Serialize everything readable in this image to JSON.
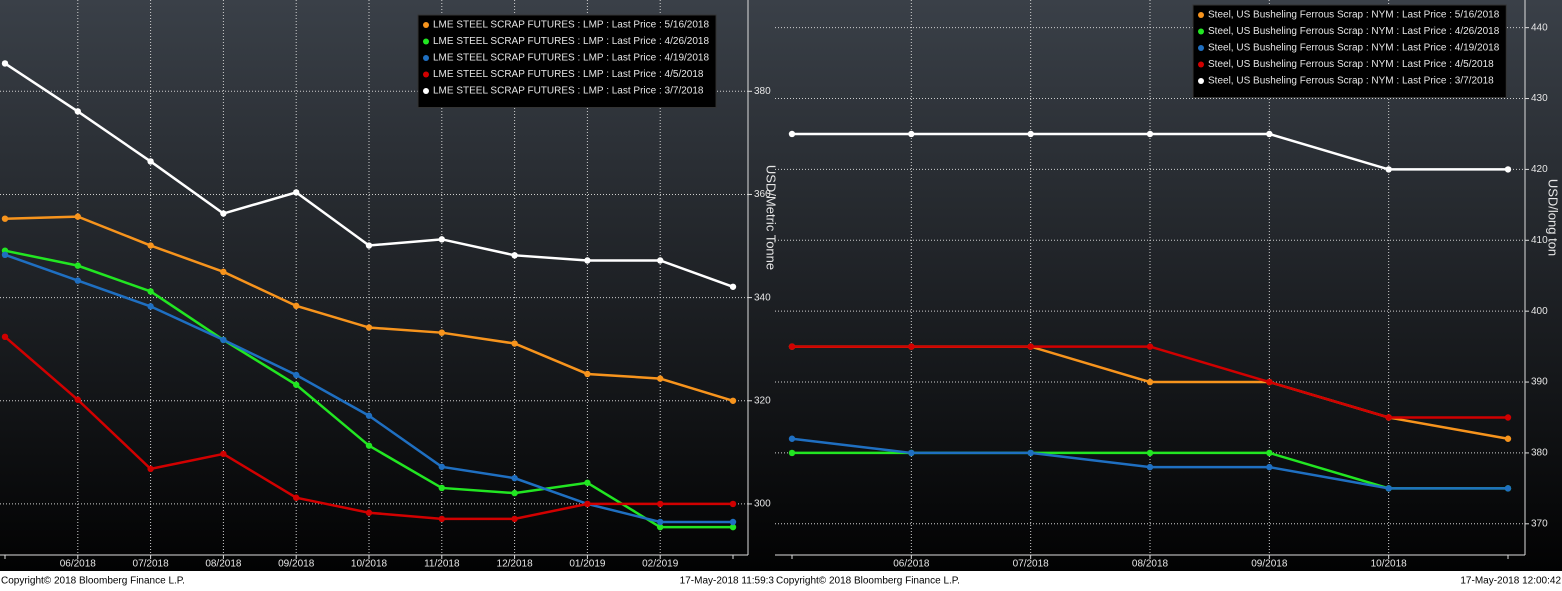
{
  "chart_data": [
    {
      "type": "line",
      "y_label": "USD/Metric Tonne",
      "categories": [
        null,
        "06/2018",
        "07/2018",
        "08/2018",
        "09/2018",
        "10/2018",
        "11/2018",
        "12/2018",
        "01/2019",
        "02/2019",
        null
      ],
      "series": [
        {
          "name": "LME STEEL SCRAP FUTURES : LMP : Last Price : 5/16/2018",
          "color": "#f7941d",
          "values": [
            355.3,
            355.7,
            350.1,
            345.0,
            338.4,
            334.2,
            333.2,
            331.1,
            325.2,
            324.3,
            320.0
          ]
        },
        {
          "name": "LME STEEL SCRAP FUTURES : LMP : Last Price : 4/26/2018",
          "color": "#22e622",
          "values": [
            349.1,
            346.2,
            341.2,
            331.8,
            323.1,
            311.3,
            303.1,
            302.1,
            304.1,
            295.5,
            295.5
          ]
        },
        {
          "name": "LME STEEL SCRAP FUTURES : LMP : Last Price : 4/19/2018",
          "color": "#1f6fc1",
          "values": [
            348.3,
            343.3,
            338.3,
            331.8,
            325.0,
            317.1,
            307.2,
            305.0,
            300.0,
            296.5,
            296.5
          ]
        },
        {
          "name": "LME STEEL SCRAP FUTURES : LMP : Last Price : 4/5/2018",
          "color": "#d10000",
          "values": [
            332.4,
            320.2,
            306.8,
            309.7,
            301.2,
            298.3,
            297.1,
            297.1,
            300.0,
            300.0,
            300.0
          ]
        },
        {
          "name": "LME STEEL SCRAP FUTURES : LMP : Last Price : 3/7/2018",
          "color": "#ffffff",
          "values": [
            385.4,
            376.1,
            366.4,
            356.3,
            360.4,
            350.1,
            351.3,
            348.2,
            347.2,
            347.2,
            342.1
          ]
        }
      ],
      "ylim": [
        290.1,
        397.7
      ],
      "yticks": [
        300,
        320,
        340,
        360,
        380
      ],
      "grid": true,
      "copyright": "Copyright© 2018 Bloomberg Finance L.P.",
      "timestamp": "17-May-2018 11:59:3"
    },
    {
      "type": "line",
      "y_label": "USD/long ton",
      "categories": [
        null,
        "06/2018",
        "07/2018",
        "08/2018",
        "09/2018",
        "10/2018",
        null
      ],
      "series": [
        {
          "name": "Steel, US Busheling Ferrous Scrap : NYM : Last Price : 5/16/2018",
          "color": "#f7941d",
          "values": [
            395,
            395,
            395,
            390,
            390,
            385,
            382
          ]
        },
        {
          "name": "Steel, US Busheling Ferrous Scrap : NYM : Last Price : 4/26/2018",
          "color": "#22e622",
          "values": [
            380,
            380,
            380,
            380,
            380,
            375,
            375
          ]
        },
        {
          "name": "Steel, US Busheling Ferrous Scrap : NYM : Last Price : 4/19/2018",
          "color": "#1f6fc1",
          "values": [
            382,
            380,
            380,
            378,
            378,
            375,
            375
          ]
        },
        {
          "name": "Steel, US Busheling Ferrous Scrap : NYM : Last Price : 4/5/2018",
          "color": "#d10000",
          "values": [
            395,
            395,
            395,
            395,
            390,
            385,
            385
          ]
        },
        {
          "name": "Steel, US Busheling Ferrous Scrap : NYM : Last Price : 3/7/2018",
          "color": "#ffffff",
          "values": [
            425,
            425,
            425,
            425,
            425,
            420,
            420
          ]
        }
      ],
      "ylim": [
        365.6,
        443.9
      ],
      "yticks": [
        370,
        380,
        390,
        400,
        410,
        420,
        430,
        440
      ],
      "grid": true,
      "copyright": "Copyright© 2018 Bloomberg Finance L.P.",
      "timestamp": "17-May-2018 12:00:42"
    }
  ]
}
